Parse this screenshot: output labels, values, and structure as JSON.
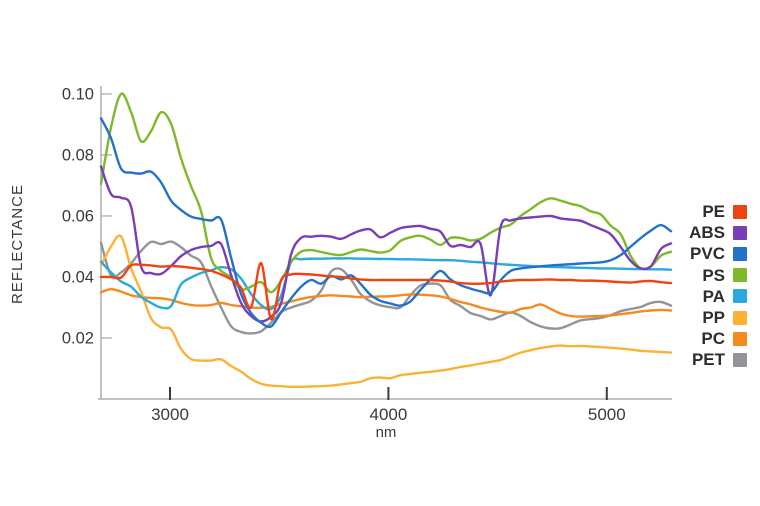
{
  "chart_data": {
    "type": "line",
    "title": "",
    "xlabel": "nm",
    "ylabel": "REFLECTANCE",
    "x_ticks": [
      3000,
      4000,
      5000
    ],
    "y_ticks": [
      0.02,
      0.04,
      0.06,
      0.08,
      0.1
    ],
    "xlim": [
      2684,
      5294
    ],
    "ylim": [
      0,
      0.1026
    ],
    "grid": false,
    "legend_position": "right",
    "axis_color": "#aeaeae",
    "tick_mark_color": "#3c3c3c",
    "text_color": "#3a3a3a",
    "x": [
      2684,
      2730,
      2776,
      2822,
      2867,
      2913,
      2959,
      3005,
      3050,
      3096,
      3142,
      3188,
      3234,
      3280,
      3325,
      3371,
      3417,
      3463,
      3509,
      3555,
      3600,
      3646,
      3692,
      3738,
      3784,
      3830,
      3872,
      3917,
      3963,
      4009,
      4055,
      4101,
      4147,
      4193,
      4239,
      4284,
      4330,
      4376,
      4422,
      4468,
      4514,
      4560,
      4606,
      4651,
      4697,
      4743,
      4789,
      4835,
      4881,
      4927,
      4972,
      5018,
      5064,
      5110,
      5156,
      5202,
      5248,
      5294
    ],
    "series": [
      {
        "name": "PE",
        "color": "#F04311",
        "values": [
          0.04,
          0.04,
          0.0398,
          0.0438,
          0.044,
          0.0438,
          0.0434,
          0.0436,
          0.0434,
          0.043,
          0.0426,
          0.042,
          0.0408,
          0.0392,
          0.0365,
          0.03,
          0.0445,
          0.0262,
          0.039,
          0.0408,
          0.041,
          0.0408,
          0.0405,
          0.0402,
          0.04,
          0.0395,
          0.0392,
          0.039,
          0.039,
          0.039,
          0.039,
          0.039,
          0.039,
          0.039,
          0.0388,
          0.0385,
          0.038,
          0.0378,
          0.0378,
          0.038,
          0.0385,
          0.0388,
          0.039,
          0.039,
          0.0391,
          0.0392,
          0.039,
          0.039,
          0.0388,
          0.0388,
          0.0387,
          0.0385,
          0.0383,
          0.0382,
          0.0385,
          0.0387,
          0.0383,
          0.038
        ]
      },
      {
        "name": "ABS",
        "color": "#7A3DB8",
        "values": [
          0.0762,
          0.0672,
          0.066,
          0.063,
          0.0435,
          0.0413,
          0.041,
          0.0436,
          0.0468,
          0.0488,
          0.0498,
          0.0502,
          0.0508,
          0.0405,
          0.0315,
          0.0272,
          0.0254,
          0.027,
          0.0315,
          0.0475,
          0.0528,
          0.0532,
          0.0535,
          0.0532,
          0.0525,
          0.054,
          0.0552,
          0.0556,
          0.053,
          0.0545,
          0.056,
          0.0565,
          0.0567,
          0.0558,
          0.0548,
          0.0502,
          0.0505,
          0.0498,
          0.0508,
          0.034,
          0.0565,
          0.0585,
          0.0592,
          0.0595,
          0.0598,
          0.06,
          0.0592,
          0.0588,
          0.0584,
          0.057,
          0.0557,
          0.054,
          0.0498,
          0.0452,
          0.0428,
          0.0435,
          0.0492,
          0.051
        ]
      },
      {
        "name": "PVC",
        "color": "#2471C8",
        "values": [
          0.092,
          0.0855,
          0.0755,
          0.0742,
          0.0739,
          0.0745,
          0.071,
          0.065,
          0.062,
          0.0598,
          0.059,
          0.0585,
          0.0588,
          0.0462,
          0.0345,
          0.0282,
          0.025,
          0.0238,
          0.0285,
          0.033,
          0.0368,
          0.039,
          0.0378,
          0.0403,
          0.0392,
          0.0405,
          0.0378,
          0.0342,
          0.0322,
          0.0313,
          0.0306,
          0.032,
          0.0358,
          0.0392,
          0.042,
          0.0392,
          0.0373,
          0.0362,
          0.0353,
          0.0348,
          0.039,
          0.042,
          0.0428,
          0.0432,
          0.0435,
          0.0438,
          0.044,
          0.0442,
          0.0444,
          0.0446,
          0.0448,
          0.0455,
          0.0472,
          0.05,
          0.0528,
          0.0552,
          0.057,
          0.055
        ]
      },
      {
        "name": "PS",
        "color": "#7DB928",
        "values": [
          0.0705,
          0.089,
          0.1,
          0.094,
          0.0845,
          0.0878,
          0.094,
          0.0902,
          0.079,
          0.0698,
          0.0616,
          0.0462,
          0.042,
          0.0398,
          0.036,
          0.0368,
          0.0383,
          0.035,
          0.0388,
          0.045,
          0.0483,
          0.0488,
          0.0482,
          0.0475,
          0.0472,
          0.0482,
          0.049,
          0.0485,
          0.048,
          0.0488,
          0.0518,
          0.053,
          0.0535,
          0.0522,
          0.0505,
          0.0528,
          0.0528,
          0.052,
          0.0525,
          0.0545,
          0.0562,
          0.0572,
          0.06,
          0.0622,
          0.0645,
          0.0658,
          0.065,
          0.064,
          0.0632,
          0.0615,
          0.0605,
          0.0568,
          0.054,
          0.0468,
          0.0428,
          0.0435,
          0.047,
          0.0483
        ]
      },
      {
        "name": "PA",
        "color": "#29A9E0",
        "values": [
          0.045,
          0.0415,
          0.0385,
          0.0368,
          0.0335,
          0.0315,
          0.03,
          0.0305,
          0.0375,
          0.0398,
          0.0413,
          0.0422,
          0.0432,
          0.0425,
          0.0395,
          0.0345,
          0.0308,
          0.0295,
          0.034,
          0.045,
          0.0458,
          0.046,
          0.046,
          0.0461,
          0.0461,
          0.0461,
          0.046,
          0.046,
          0.0459,
          0.0459,
          0.0458,
          0.0458,
          0.0457,
          0.0456,
          0.0455,
          0.0455,
          0.0453,
          0.045,
          0.0448,
          0.0445,
          0.0442,
          0.044,
          0.0438,
          0.0436,
          0.0434,
          0.0433,
          0.0432,
          0.0431,
          0.043,
          0.0429,
          0.0428,
          0.0428,
          0.0427,
          0.0426,
          0.0426,
          0.0425,
          0.0425,
          0.0424
        ]
      },
      {
        "name": "PP",
        "color": "#F9B233",
        "values": [
          0.0438,
          0.05,
          0.0533,
          0.0428,
          0.0352,
          0.0265,
          0.0235,
          0.0228,
          0.0165,
          0.0131,
          0.0126,
          0.0126,
          0.013,
          0.0108,
          0.009,
          0.0066,
          0.005,
          0.0044,
          0.0042,
          0.004,
          0.004,
          0.0041,
          0.0042,
          0.0044,
          0.0048,
          0.0052,
          0.0056,
          0.0068,
          0.007,
          0.0068,
          0.0078,
          0.0082,
          0.0086,
          0.0089,
          0.0093,
          0.0098,
          0.0105,
          0.011,
          0.0116,
          0.0122,
          0.0128,
          0.014,
          0.0152,
          0.016,
          0.0167,
          0.0172,
          0.0175,
          0.0173,
          0.0174,
          0.0172,
          0.017,
          0.0168,
          0.0165,
          0.0162,
          0.0158,
          0.0156,
          0.0154,
          0.0152
        ]
      },
      {
        "name": "PC",
        "color": "#F58A1F",
        "values": [
          0.035,
          0.036,
          0.0352,
          0.034,
          0.0334,
          0.0331,
          0.033,
          0.0325,
          0.0315,
          0.0308,
          0.0306,
          0.0308,
          0.0315,
          0.0308,
          0.0304,
          0.03,
          0.0299,
          0.0302,
          0.0312,
          0.032,
          0.0328,
          0.0334,
          0.0338,
          0.034,
          0.0338,
          0.0336,
          0.0334,
          0.0335,
          0.0336,
          0.0337,
          0.034,
          0.0343,
          0.0342,
          0.034,
          0.0336,
          0.0328,
          0.0318,
          0.031,
          0.03,
          0.0292,
          0.0286,
          0.0283,
          0.0295,
          0.03,
          0.031,
          0.0295,
          0.028,
          0.0272,
          0.027,
          0.0271,
          0.0272,
          0.0274,
          0.0278,
          0.0282,
          0.0287,
          0.029,
          0.0292,
          0.029
        ]
      },
      {
        "name": "PET",
        "color": "#929497",
        "values": [
          0.0512,
          0.0405,
          0.0415,
          0.0445,
          0.0485,
          0.0515,
          0.0508,
          0.0516,
          0.0498,
          0.047,
          0.0448,
          0.037,
          0.03,
          0.0238,
          0.022,
          0.0215,
          0.0222,
          0.025,
          0.0285,
          0.03,
          0.031,
          0.0322,
          0.0355,
          0.0418,
          0.0425,
          0.039,
          0.0345,
          0.032,
          0.0307,
          0.0301,
          0.03,
          0.034,
          0.0372,
          0.0378,
          0.0372,
          0.0325,
          0.0305,
          0.0282,
          0.0272,
          0.0261,
          0.0272,
          0.0284,
          0.0272,
          0.0252,
          0.0238,
          0.0231,
          0.0232,
          0.0245,
          0.0258,
          0.0262,
          0.0266,
          0.0275,
          0.0288,
          0.0295,
          0.0302,
          0.0315,
          0.0318,
          0.0306
        ]
      }
    ],
    "draw_order": [
      "PET",
      "PC",
      "PP",
      "PA",
      "PS",
      "ABS",
      "PVC",
      "PE"
    ]
  }
}
